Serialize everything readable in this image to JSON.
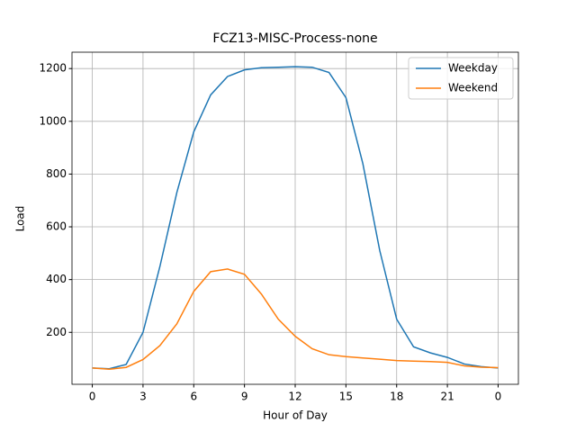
{
  "chart_data": {
    "type": "line",
    "title": "FCZ13-MISC-Process-none",
    "xlabel": "Hour of Day",
    "ylabel": "Load",
    "x": [
      0,
      1,
      2,
      3,
      4,
      5,
      6,
      7,
      8,
      9,
      10,
      11,
      12,
      13,
      14,
      15,
      16,
      17,
      18,
      19,
      20,
      21,
      22,
      23,
      24
    ],
    "series": [
      {
        "name": "Weekday",
        "color": "#1f77b4",
        "values": [
          65,
          62,
          78,
          200,
          450,
          730,
          960,
          1100,
          1170,
          1195,
          1203,
          1205,
          1207,
          1205,
          1185,
          1090,
          840,
          510,
          250,
          145,
          122,
          105,
          80,
          70,
          65
        ]
      },
      {
        "name": "Weekend",
        "color": "#ff7f0e",
        "values": [
          65,
          60,
          67,
          97,
          150,
          232,
          355,
          430,
          440,
          420,
          345,
          250,
          185,
          138,
          115,
          108,
          103,
          98,
          93,
          91,
          89,
          86,
          73,
          68,
          66
        ]
      }
    ],
    "xlim": [
      -1.2,
      25.2
    ],
    "xticks": [
      0,
      3,
      6,
      9,
      12,
      15,
      18,
      21,
      {
        "value": 24,
        "label": "0"
      }
    ],
    "ylim": [
      3,
      1262
    ],
    "yticks": [
      200,
      400,
      600,
      800,
      1000,
      1200
    ],
    "grid": true,
    "legend": "upper right"
  }
}
